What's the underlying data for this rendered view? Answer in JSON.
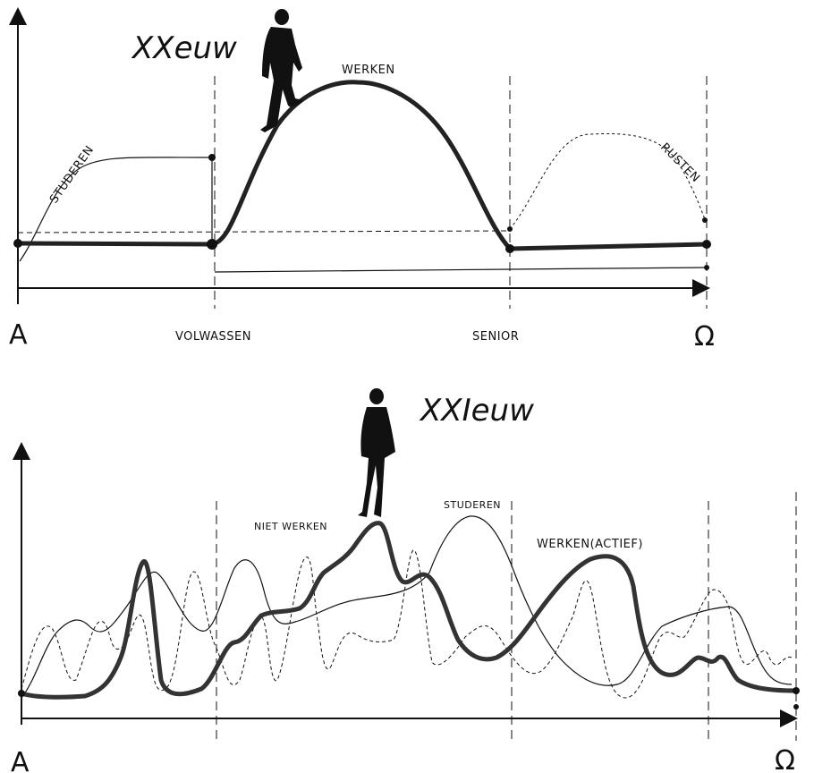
{
  "top": {
    "title": "XXeuw",
    "labels": {
      "studeren": "STUDEREN",
      "werken": "WERKEN",
      "rusten": "RUSTEN"
    },
    "axis": {
      "start": "A",
      "adult": "VOLWASSEN",
      "senior": "SENIOR",
      "end": "Ω"
    }
  },
  "bottom": {
    "title": "XXIeuw",
    "labels": {
      "niet_werken": "NIET WERKEN",
      "studeren": "STUDEREN",
      "werken_actief": "WERKEN(ACTIEF)"
    },
    "axis": {
      "start": "A",
      "end": "Ω"
    }
  }
}
